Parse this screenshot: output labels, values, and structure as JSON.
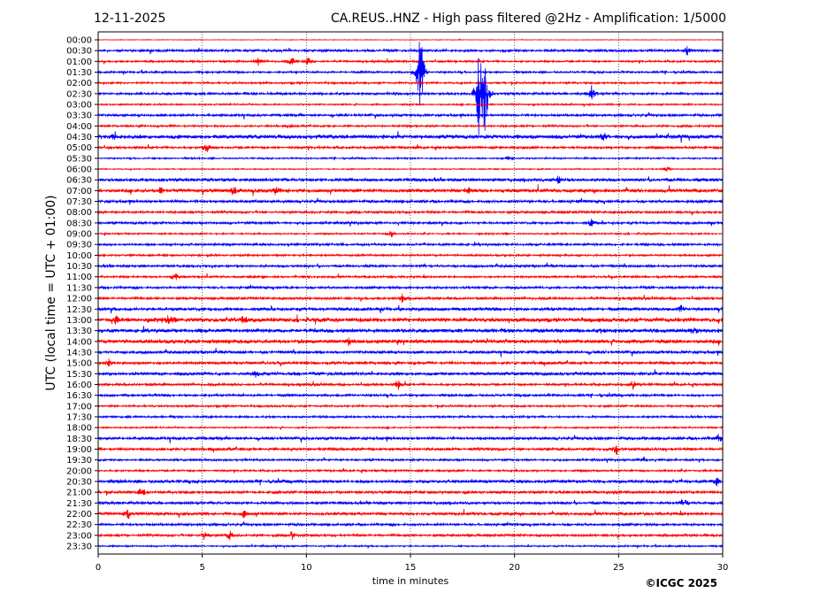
{
  "chart_data": {
    "type": "line",
    "title_left": "12-11-2025",
    "title": "CA.REUS..HNZ - High pass filtered @2Hz - Amplification: 1/5000",
    "xlabel": "time in minutes",
    "ylabel": "UTC (local time = UTC + 01:00)",
    "xlim": [
      0,
      30
    ],
    "xticks": [
      "0",
      "5",
      "10",
      "15",
      "20",
      "25",
      "30"
    ],
    "xtick_values": [
      0,
      5,
      10,
      15,
      20,
      25,
      30
    ],
    "grid": "vertical dotted at x ticks",
    "row_labels": [
      "00:00",
      "00:30",
      "01:00",
      "01:30",
      "02:00",
      "02:30",
      "03:00",
      "03:30",
      "04:00",
      "04:30",
      "05:00",
      "05:30",
      "06:00",
      "06:30",
      "07:00",
      "07:30",
      "08:00",
      "08:30",
      "09:00",
      "09:30",
      "10:00",
      "10:30",
      "11:00",
      "11:30",
      "12:00",
      "12:30",
      "13:00",
      "13:30",
      "14:00",
      "14:30",
      "15:00",
      "15:30",
      "16:00",
      "16:30",
      "17:00",
      "17:30",
      "18:00",
      "18:30",
      "19:00",
      "19:30",
      "20:00",
      "20:30",
      "21:00",
      "21:30",
      "22:00",
      "22:30",
      "23:00",
      "23:30"
    ],
    "series_colors": [
      "#ff0000",
      "#0000ff"
    ],
    "row_noise_level": [
      0.3,
      1.2,
      1,
      1,
      1,
      1.2,
      0.8,
      1.2,
      1,
      2,
      1.2,
      0.8,
      0.6,
      1.6,
      1.8,
      1.4,
      1.2,
      1.2,
      0.8,
      1.2,
      1,
      1.2,
      1,
      1.2,
      1.2,
      1.6,
      2.2,
      2,
      2,
      1.4,
      1.4,
      1.6,
      1.2,
      1.2,
      1,
      1,
      0.8,
      1.4,
      1.4,
      1,
      1,
      1.6,
      1.4,
      1.4,
      1.4,
      1.2,
      1.2,
      0.8
    ],
    "events": [
      [
        1,
        28.3,
        6
      ],
      [
        2,
        7.7,
        5
      ],
      [
        2,
        9.3,
        6
      ],
      [
        2,
        10.1,
        5
      ],
      [
        5,
        23.7,
        9
      ],
      [
        9,
        0.8,
        4
      ],
      [
        9,
        24.3,
        5
      ],
      [
        10,
        5.2,
        8
      ],
      [
        3,
        15.5,
        40
      ],
      [
        3,
        15.4,
        30
      ],
      [
        5,
        18.3,
        70
      ],
      [
        5,
        18.6,
        60
      ],
      [
        11,
        19.7,
        3
      ],
      [
        12,
        27.3,
        4
      ],
      [
        13,
        22.1,
        5
      ],
      [
        14,
        3,
        4
      ],
      [
        14,
        6.5,
        5
      ],
      [
        14,
        8.5,
        4
      ],
      [
        14,
        17.8,
        4
      ],
      [
        18,
        14.1,
        5
      ],
      [
        17,
        23.7,
        6
      ],
      [
        22,
        3.7,
        6
      ],
      [
        24,
        14.6,
        5
      ],
      [
        25,
        28,
        4
      ],
      [
        26,
        0.8,
        6
      ],
      [
        26,
        3.4,
        7
      ],
      [
        26,
        7,
        6
      ],
      [
        27,
        28.6,
        6
      ],
      [
        28,
        12,
        5
      ],
      [
        30,
        0.5,
        5
      ],
      [
        31,
        7.6,
        4
      ],
      [
        32,
        14.4,
        6
      ],
      [
        32,
        25.7,
        5
      ],
      [
        37,
        29.8,
        5
      ],
      [
        38,
        24.9,
        6
      ],
      [
        39,
        26.2,
        4
      ],
      [
        41,
        29.7,
        6
      ],
      [
        42,
        2.1,
        7
      ],
      [
        43,
        28.2,
        5
      ],
      [
        44,
        1.4,
        6
      ],
      [
        44,
        7,
        5
      ],
      [
        46,
        5.1,
        7
      ],
      [
        46,
        6.3,
        6
      ],
      [
        46,
        9.3,
        5
      ]
    ]
  },
  "footer": {
    "copyright": "©ICGC 2025"
  }
}
